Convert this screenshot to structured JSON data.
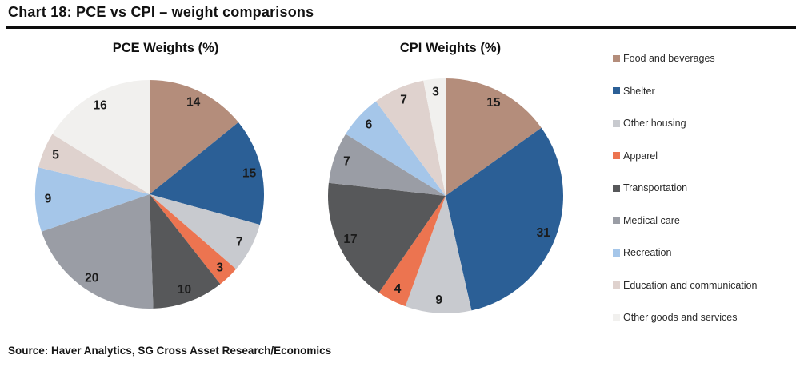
{
  "title": "Chart 18: PCE vs CPI – weight comparisons",
  "source": "Source: Haver Analytics, SG Cross Asset Research/Economics",
  "legend": {
    "position": "right",
    "items": [
      {
        "label": "Food and beverages",
        "color": "#b48d7b"
      },
      {
        "label": "Shelter",
        "color": "#2b5f96"
      },
      {
        "label": "Other housing",
        "color": "#c8cacf"
      },
      {
        "label": "Apparel",
        "color": "#ec7450"
      },
      {
        "label": "Transportation",
        "color": "#57585a"
      },
      {
        "label": "Medical care",
        "color": "#9a9da5"
      },
      {
        "label": "Recreation",
        "color": "#a5c6e9"
      },
      {
        "label": "Education and communication",
        "color": "#dfd2ce"
      },
      {
        "label": "Other goods and services",
        "color": "#f1f0ee"
      }
    ]
  },
  "chart_data": [
    {
      "type": "pie",
      "title": "PCE Weights (%)",
      "categories": [
        "Food and beverages",
        "Shelter",
        "Other housing",
        "Apparel",
        "Transportation",
        "Medical care",
        "Recreation",
        "Education and communication",
        "Other goods and services"
      ],
      "values": [
        14,
        15,
        7,
        3,
        10,
        20,
        9,
        5,
        16
      ],
      "colors": [
        "#b48d7b",
        "#2b5f96",
        "#c8cacf",
        "#ec7450",
        "#57585a",
        "#9a9da5",
        "#a5c6e9",
        "#dfd2ce",
        "#f1f0ee"
      ],
      "start_angle_deg": 0,
      "direction": "clockwise",
      "data_labels": "values",
      "radius_px": 143
    },
    {
      "type": "pie",
      "title": "CPI Weights (%)",
      "categories": [
        "Food and beverages",
        "Shelter",
        "Other housing",
        "Apparel",
        "Transportation",
        "Medical care",
        "Recreation",
        "Education and communication",
        "Other goods and services"
      ],
      "values": [
        15,
        31,
        9,
        4,
        17,
        7,
        6,
        7,
        3
      ],
      "colors": [
        "#b48d7b",
        "#2b5f96",
        "#c8cacf",
        "#ec7450",
        "#57585a",
        "#9a9da5",
        "#a5c6e9",
        "#dfd2ce",
        "#f1f0ee"
      ],
      "start_angle_deg": 0,
      "direction": "clockwise",
      "data_labels": "values",
      "radius_px": 147
    }
  ]
}
